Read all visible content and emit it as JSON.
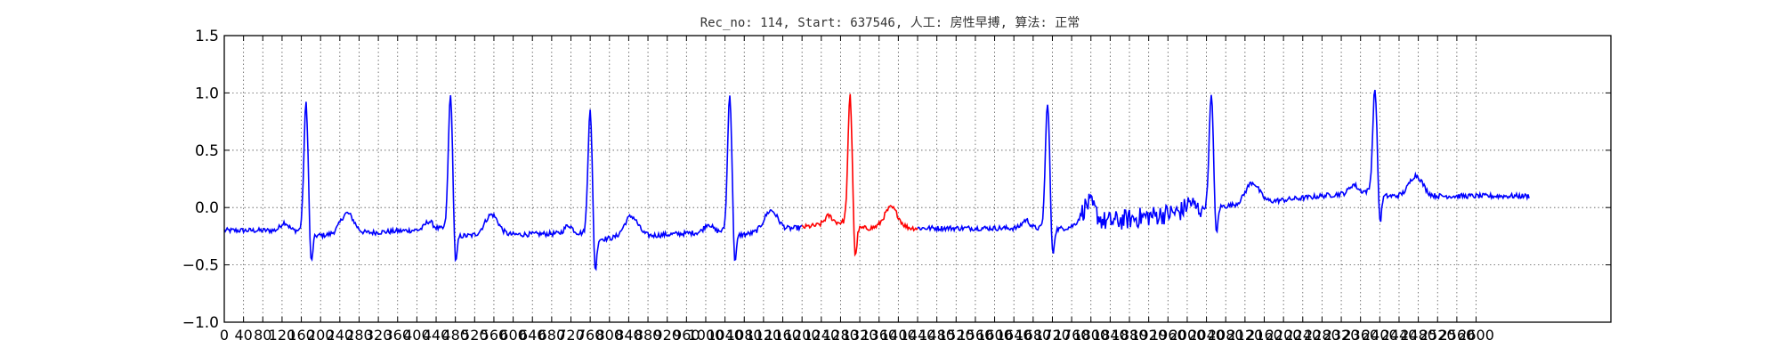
{
  "chart_data": {
    "type": "line",
    "title": "Rec_no: 114, Start: 637546, 人工: 房性早搏, 算法: 正常",
    "xlabel": "",
    "ylabel": "",
    "xlim": [
      0,
      2880
    ],
    "ylim": [
      -1.0,
      1.5
    ],
    "x_ticks": [
      0,
      40,
      80,
      120,
      160,
      200,
      240,
      280,
      320,
      360,
      400,
      440,
      480,
      520,
      560,
      600,
      640,
      680,
      720,
      760,
      800,
      840,
      880,
      920,
      960,
      1000,
      1040,
      1080,
      1120,
      1160,
      1200,
      1240,
      1280,
      1320,
      1360,
      1400,
      1440,
      1480,
      1520,
      1560,
      1600,
      1640,
      1680,
      1720,
      1760,
      1800,
      1840,
      1880,
      1920,
      1960,
      2000,
      2040,
      2080,
      2120,
      2160,
      2200,
      2240,
      2280,
      2320,
      2360,
      2400,
      2440,
      2480,
      2520,
      2560,
      2600
    ],
    "x_tick_labels": [
      "0",
      "40",
      "80",
      "120",
      "160",
      "200",
      "240",
      "280",
      "320",
      "360",
      "400",
      "440",
      "480",
      "520",
      "560",
      "600",
      "640",
      "680",
      "720",
      "760",
      "800",
      "840",
      "880",
      "920",
      "960",
      "1000",
      "1040",
      "1080",
      "1120",
      "1160",
      "1200",
      "1240",
      "1280",
      "1320",
      "1360",
      "1400",
      "1440",
      "1480",
      "1520",
      "1560",
      "1600",
      "1640",
      "1680",
      "1720",
      "1760",
      "1800",
      "1840",
      "1880",
      "1920",
      "1960",
      "2000",
      "2040",
      "2080",
      "2120",
      "2160",
      "2200",
      "2240",
      "2280",
      "2320",
      "2360",
      "2400",
      "2440",
      "2480",
      "2520",
      "2560",
      "2600"
    ],
    "y_ticks": [
      -1.0,
      -0.5,
      0.0,
      0.5,
      1.0,
      1.5
    ],
    "y_tick_labels": [
      "−1.0",
      "−0.5",
      "0.0",
      "0.5",
      "1.0",
      "1.5"
    ],
    "grid": true,
    "highlight_range": [
      1200,
      1440
    ],
    "colors": {
      "signal": "#0000ff",
      "highlight": "#ff0000",
      "grid": "#555555",
      "axis": "#000000"
    },
    "beats": [
      {
        "r_x": 170,
        "r_y": 0.92,
        "s_y": -0.55,
        "base_before": -0.2,
        "base_after": -0.25
      },
      {
        "r_x": 470,
        "r_y": 1.0,
        "s_y": -0.55,
        "base_before": -0.18,
        "base_after": -0.25
      },
      {
        "r_x": 760,
        "r_y": 0.87,
        "s_y": -0.62,
        "base_before": -0.22,
        "base_after": -0.28
      },
      {
        "r_x": 1050,
        "r_y": 1.0,
        "s_y": -0.55,
        "base_before": -0.2,
        "base_after": -0.25
      },
      {
        "r_x": 1300,
        "r_y": 0.98,
        "s_y": -0.5,
        "base_before": -0.12,
        "base_after": -0.18
      },
      {
        "r_x": 1710,
        "r_y": 0.92,
        "s_y": -0.48,
        "base_before": -0.18,
        "base_after": -0.2
      },
      {
        "r_x": 2050,
        "r_y": 0.97,
        "s_y": -0.3,
        "base_before": 0.0,
        "base_after": 0.0
      },
      {
        "r_x": 2390,
        "r_y": 1.05,
        "s_y": -0.18,
        "base_before": 0.15,
        "base_after": 0.1
      }
    ],
    "signal_end_x": 2710
  }
}
